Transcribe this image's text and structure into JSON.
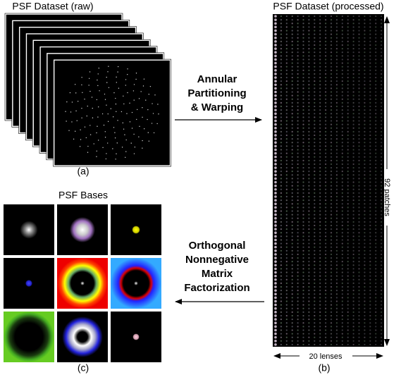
{
  "panels": {
    "raw": {
      "title": "PSF Dataset (raw)",
      "caption": "(a)"
    },
    "processed": {
      "title": "PSF Dataset (processed)",
      "caption": "(b)",
      "height_label": "92 patches",
      "width_label": "20 lenses"
    },
    "bases": {
      "title": "PSF Bases",
      "caption": "(c)"
    }
  },
  "arrows": {
    "top": {
      "lines": [
        "Annular",
        "Partitioning",
        "& Warping"
      ]
    },
    "bottom": {
      "lines": [
        "Orthogonal",
        "Nonnegative",
        "Matrix",
        "Factorization"
      ]
    }
  }
}
